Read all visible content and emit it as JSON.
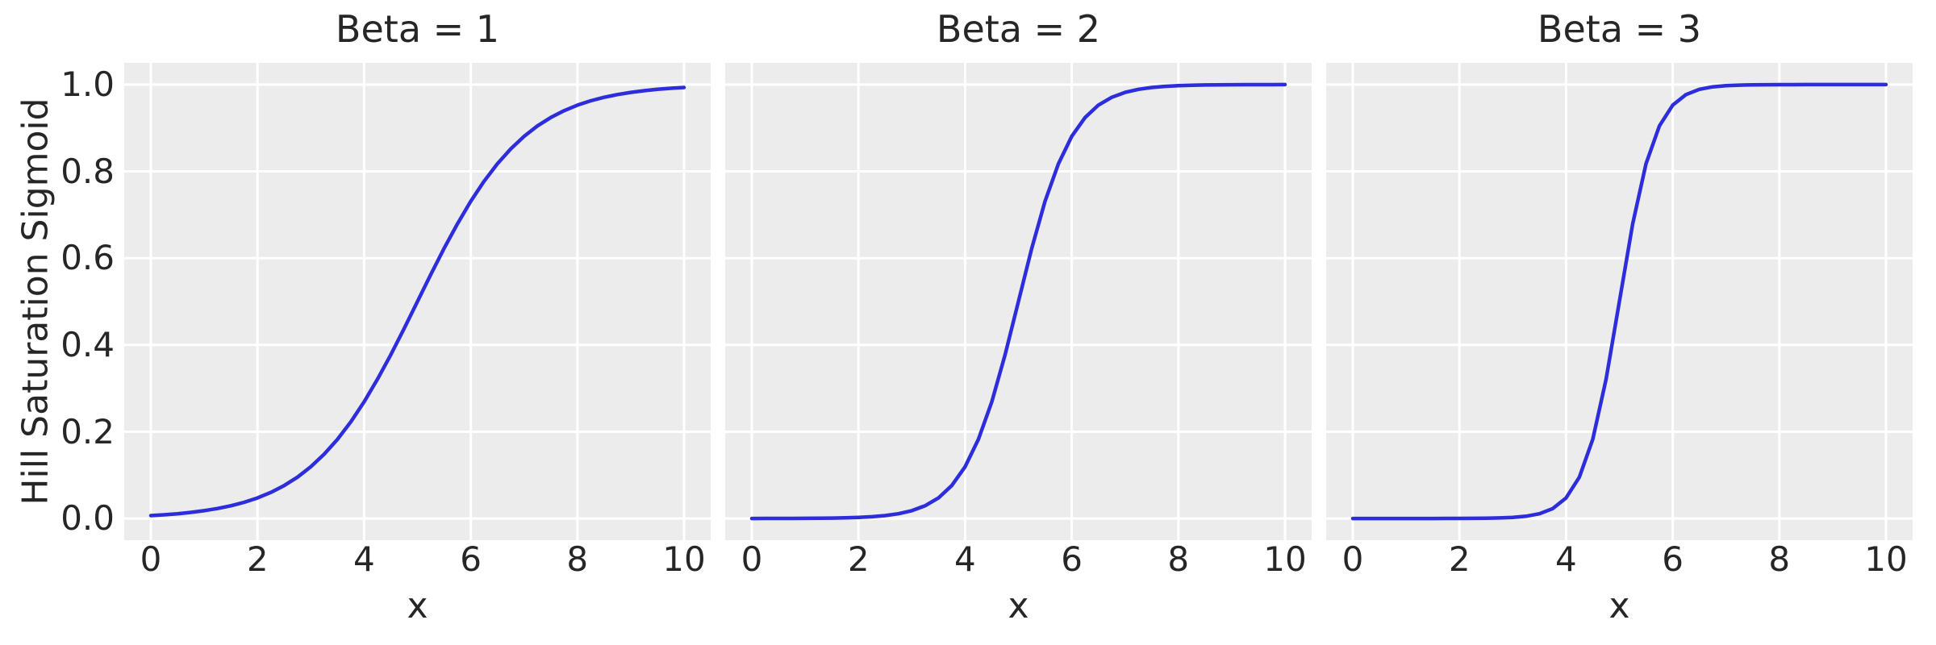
{
  "style": {
    "figure_bg": "#ffffff",
    "axes_bg": "#ECECEC",
    "grid_color": "#ffffff",
    "line_color": "#2D2DDC",
    "text_color": "#262626"
  },
  "chart_data": [
    {
      "type": "line",
      "title": "Beta = 1",
      "xlabel": "x",
      "ylabel": "Hill Saturation Sigmoid",
      "beta": 1,
      "grid": true,
      "legend_position": "none",
      "xlim": [
        -0.5,
        10.5
      ],
      "ylim": [
        -0.05,
        1.05
      ],
      "xticks": [
        0,
        2,
        4,
        6,
        8,
        10
      ],
      "xtick_labels": [
        "0",
        "2",
        "4",
        "6",
        "8",
        "10"
      ],
      "yticks": [
        0.0,
        0.2,
        0.4,
        0.6,
        0.8,
        1.0
      ],
      "ytick_labels": [
        "0.0",
        "0.2",
        "0.4",
        "0.6",
        "0.8",
        "1.0"
      ],
      "x": [
        0,
        0.25,
        0.5,
        0.75,
        1,
        1.25,
        1.5,
        1.75,
        2,
        2.25,
        2.5,
        2.75,
        3,
        3.25,
        3.5,
        3.75,
        4,
        4.25,
        4.5,
        4.75,
        5,
        5.25,
        5.5,
        5.75,
        6,
        6.25,
        6.5,
        6.75,
        7,
        7.25,
        7.5,
        7.75,
        8,
        8.25,
        8.5,
        8.75,
        9,
        9.25,
        9.5,
        9.75,
        10
      ],
      "y": [
        0.0067,
        0.0086,
        0.011,
        0.0141,
        0.018,
        0.023,
        0.0293,
        0.0373,
        0.0474,
        0.0601,
        0.0759,
        0.0953,
        0.1192,
        0.148,
        0.1824,
        0.2227,
        0.2689,
        0.3208,
        0.3775,
        0.4378,
        0.5,
        0.5622,
        0.6225,
        0.6792,
        0.7311,
        0.7773,
        0.8176,
        0.852,
        0.8808,
        0.9047,
        0.9241,
        0.9399,
        0.9526,
        0.9627,
        0.9707,
        0.977,
        0.982,
        0.9859,
        0.989,
        0.9914,
        0.9933
      ]
    },
    {
      "type": "line",
      "title": "Beta = 2",
      "xlabel": "x",
      "ylabel": "Hill Saturation Sigmoid",
      "beta": 2,
      "grid": true,
      "legend_position": "none",
      "xlim": [
        -0.5,
        10.5
      ],
      "ylim": [
        -0.05,
        1.05
      ],
      "xticks": [
        0,
        2,
        4,
        6,
        8,
        10
      ],
      "xtick_labels": [
        "0",
        "2",
        "4",
        "6",
        "8",
        "10"
      ],
      "yticks": [
        0.0,
        0.2,
        0.4,
        0.6,
        0.8,
        1.0
      ],
      "ytick_labels": [
        "0.0",
        "0.2",
        "0.4",
        "0.6",
        "0.8",
        "1.0"
      ],
      "x": [
        0,
        0.25,
        0.5,
        0.75,
        1,
        1.25,
        1.5,
        1.75,
        2,
        2.25,
        2.5,
        2.75,
        3,
        3.25,
        3.5,
        3.75,
        4,
        4.25,
        4.5,
        4.75,
        5,
        5.25,
        5.5,
        5.75,
        6,
        6.25,
        6.5,
        6.75,
        7,
        7.25,
        7.5,
        7.75,
        8,
        8.25,
        8.5,
        8.75,
        9,
        9.25,
        9.5,
        9.75,
        10
      ],
      "y": [
        0.0,
        0.0001,
        0.0001,
        0.0002,
        0.0003,
        0.0006,
        0.0009,
        0.0015,
        0.0025,
        0.0041,
        0.0067,
        0.011,
        0.018,
        0.0293,
        0.0474,
        0.0759,
        0.1192,
        0.1824,
        0.2689,
        0.3775,
        0.5,
        0.6225,
        0.7311,
        0.8176,
        0.8808,
        0.9241,
        0.9526,
        0.9707,
        0.982,
        0.989,
        0.9933,
        0.9959,
        0.9975,
        0.9985,
        0.9991,
        0.9994,
        0.9997,
        0.9998,
        0.9999,
        0.9999,
        1.0
      ]
    },
    {
      "type": "line",
      "title": "Beta = 3",
      "xlabel": "x",
      "ylabel": "Hill Saturation Sigmoid",
      "beta": 3,
      "grid": true,
      "legend_position": "none",
      "xlim": [
        -0.5,
        10.5
      ],
      "ylim": [
        -0.05,
        1.05
      ],
      "xticks": [
        0,
        2,
        4,
        6,
        8,
        10
      ],
      "xtick_labels": [
        "0",
        "2",
        "4",
        "6",
        "8",
        "10"
      ],
      "yticks": [
        0.0,
        0.2,
        0.4,
        0.6,
        0.8,
        1.0
      ],
      "ytick_labels": [
        "0.0",
        "0.2",
        "0.4",
        "0.6",
        "0.8",
        "1.0"
      ],
      "x": [
        0,
        0.25,
        0.5,
        0.75,
        1,
        1.25,
        1.5,
        1.75,
        2,
        2.25,
        2.5,
        2.75,
        3,
        3.25,
        3.5,
        3.75,
        4,
        4.25,
        4.5,
        4.75,
        5,
        5.25,
        5.5,
        5.75,
        6,
        6.25,
        6.5,
        6.75,
        7,
        7.25,
        7.5,
        7.75,
        8,
        8.25,
        8.5,
        8.75,
        9,
        9.25,
        9.5,
        9.75,
        10
      ],
      "y": [
        0.0,
        0.0,
        0.0,
        0.0,
        0.0,
        0.0,
        0.0,
        0.0001,
        0.0001,
        0.0003,
        0.0006,
        0.0012,
        0.0025,
        0.0052,
        0.011,
        0.0229,
        0.0474,
        0.0953,
        0.1824,
        0.3208,
        0.5,
        0.6792,
        0.8176,
        0.9047,
        0.9526,
        0.977,
        0.989,
        0.9948,
        0.9975,
        0.9988,
        0.9994,
        0.9997,
        0.9999,
        0.9999,
        1.0,
        1.0,
        1.0,
        1.0,
        1.0,
        1.0,
        1.0
      ]
    }
  ]
}
